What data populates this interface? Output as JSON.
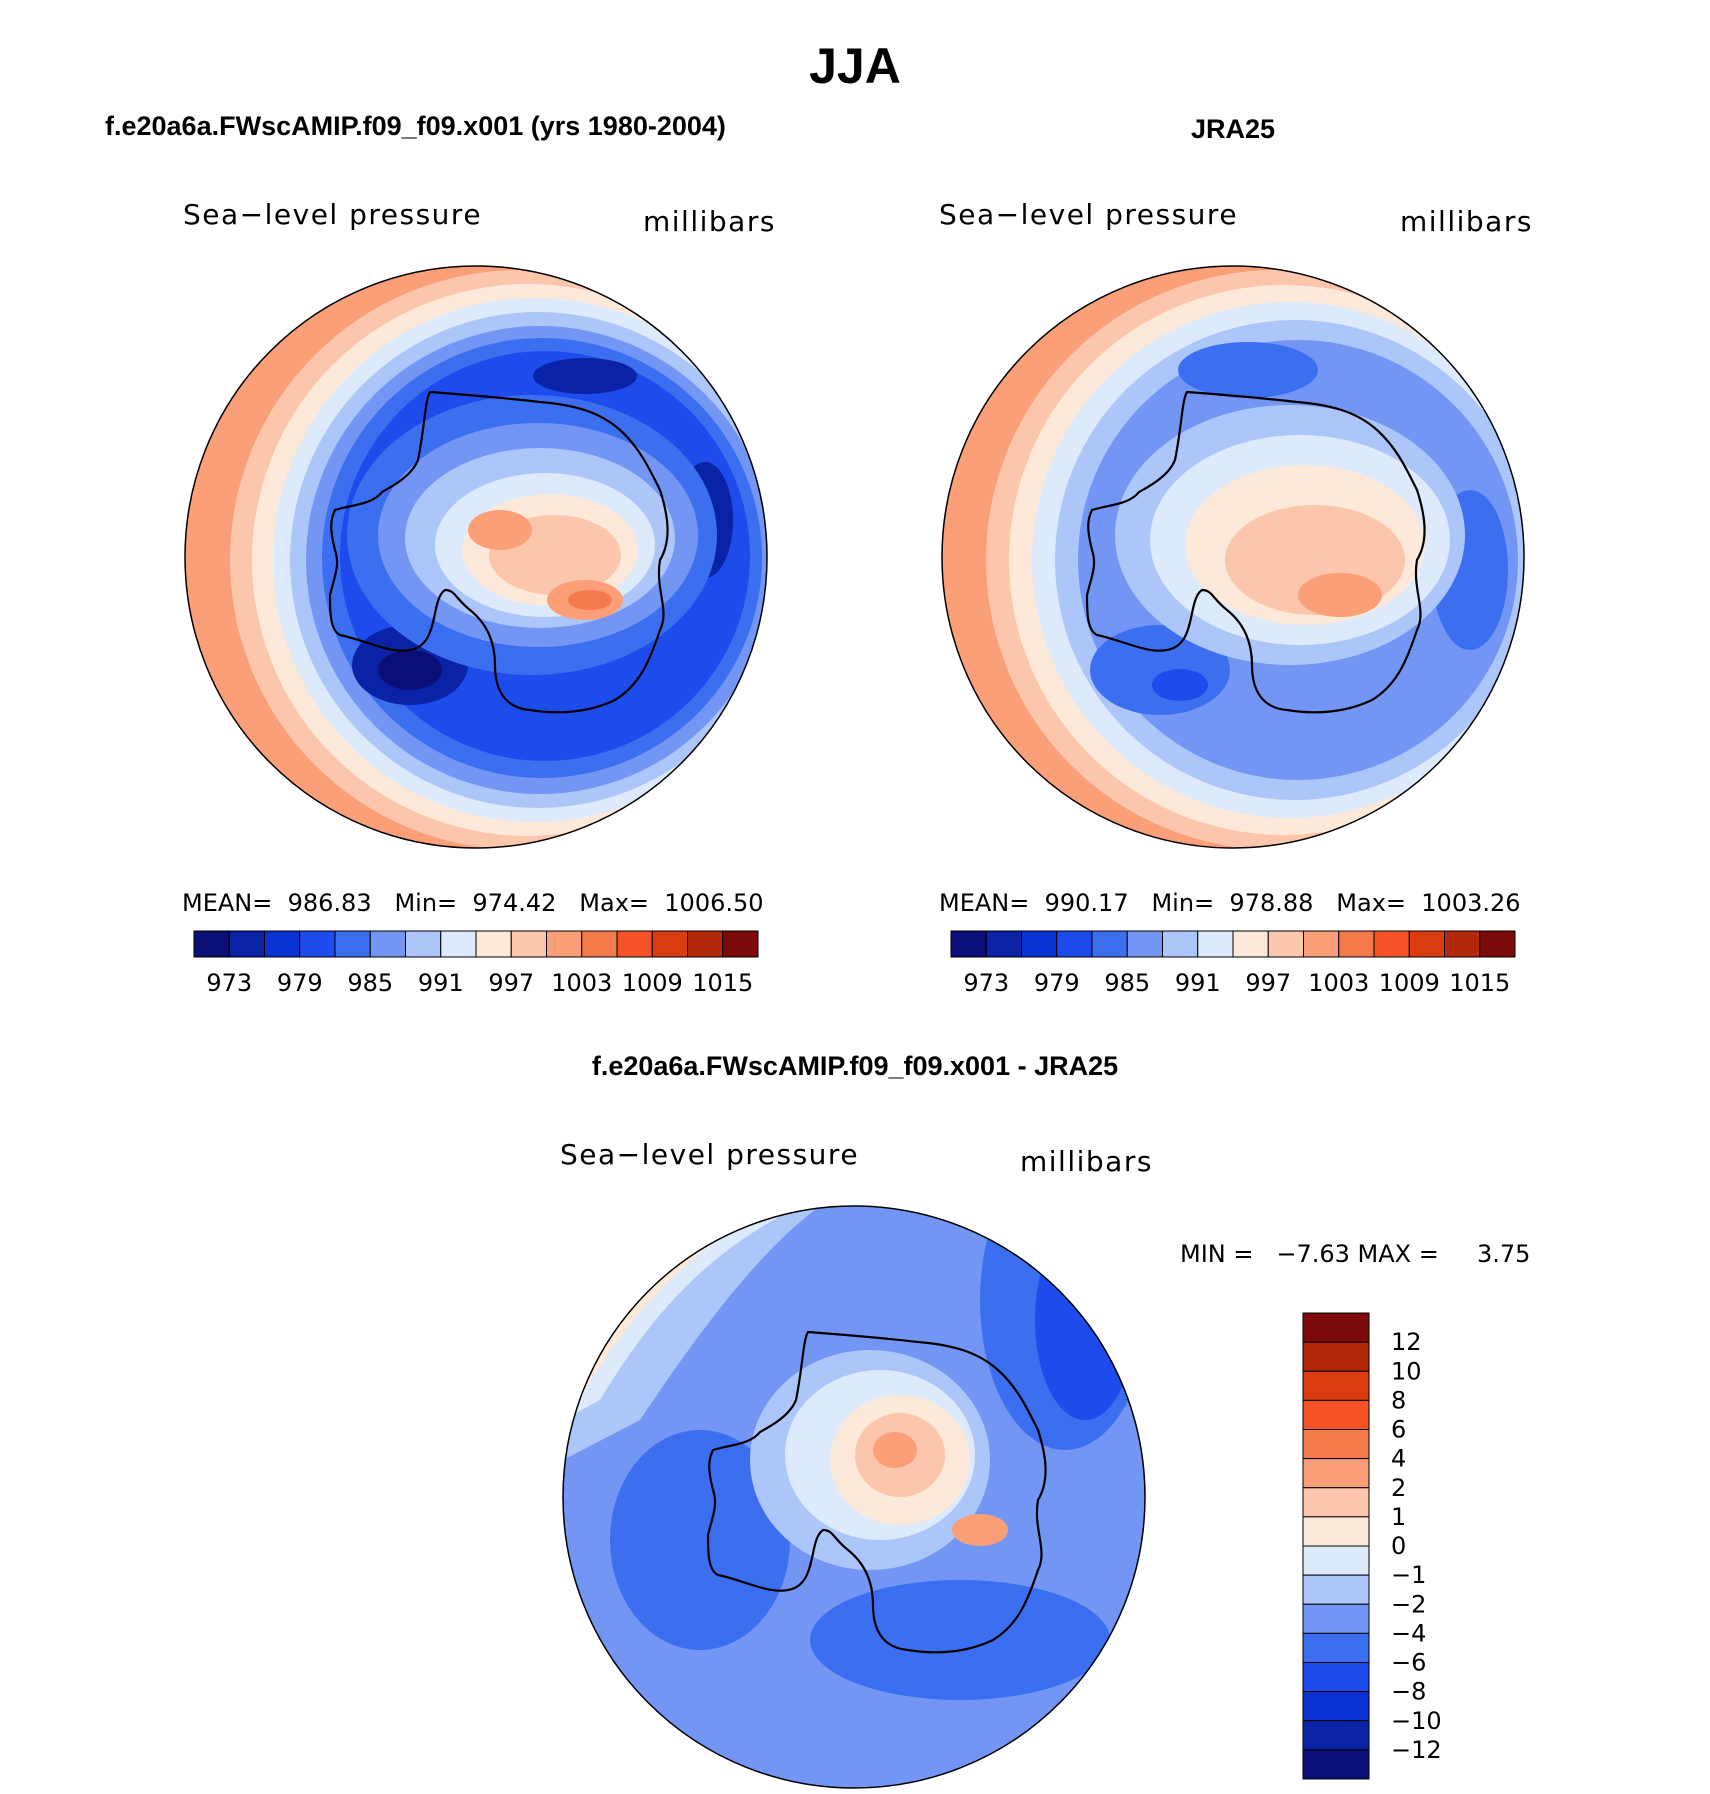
{
  "figure": {
    "season": "JJA",
    "panel_label_unit": "millibars"
  },
  "panels": {
    "model": {
      "heading": "f.e20a6a.FWscAMIP.f09_f09.x001 (yrs 1980-2004)",
      "variable": "Sea−level pressure",
      "unit": "millibars",
      "stats": "MEAN=  986.83   Min=  974.42   Max=  1006.50"
    },
    "obs": {
      "heading": "JRA25",
      "variable": "Sea−level pressure",
      "unit": "millibars",
      "stats": "MEAN=  990.17   Min=  978.88   Max=  1003.26"
    },
    "diff": {
      "heading": "f.e20a6a.FWscAMIP.f09_f09.x001 - JRA25",
      "variable": "Sea−level pressure",
      "unit": "millibars",
      "stats": "MIN =   −7.63 MAX =     3.75"
    }
  },
  "chart_data": [
    {
      "type": "heatmap",
      "projection": "south-polar-stereographic",
      "title": "f.e20a6a.FWscAMIP.f09_f09.x001 (yrs 1980-2004)",
      "variable": "Sea-level pressure",
      "units": "millibars",
      "mean": 986.83,
      "min": 974.42,
      "max": 1006.5,
      "levels": [
        973,
        976,
        979,
        982,
        985,
        988,
        991,
        994,
        997,
        1000,
        1003,
        1006,
        1009,
        1012,
        1015
      ],
      "tick_labels": [
        "973",
        "979",
        "985",
        "991",
        "997",
        "1003",
        "1009",
        "1015"
      ],
      "colorbar_orientation": "horizontal"
    },
    {
      "type": "heatmap",
      "projection": "south-polar-stereographic",
      "title": "JRA25",
      "variable": "Sea-level pressure",
      "units": "millibars",
      "mean": 990.17,
      "min": 978.88,
      "max": 1003.26,
      "levels": [
        973,
        976,
        979,
        982,
        985,
        988,
        991,
        994,
        997,
        1000,
        1003,
        1006,
        1009,
        1012,
        1015
      ],
      "tick_labels": [
        "973",
        "979",
        "985",
        "991",
        "997",
        "1003",
        "1009",
        "1015"
      ],
      "colorbar_orientation": "horizontal"
    },
    {
      "type": "heatmap",
      "projection": "south-polar-stereographic",
      "title": "f.e20a6a.FWscAMIP.f09_f09.x001 - JRA25",
      "variable": "Sea-level pressure",
      "units": "millibars",
      "min": -7.63,
      "max": 3.75,
      "levels": [
        -12,
        -10,
        -8,
        -6,
        -4,
        -2,
        -1,
        0,
        1,
        2,
        4,
        6,
        8,
        10,
        12
      ],
      "tick_labels": [
        "12",
        "10",
        "8",
        "6",
        "4",
        "2",
        "1",
        "0",
        "−1",
        "−2",
        "−4",
        "−6",
        "−8",
        "−10",
        "−12"
      ],
      "colorbar_orientation": "vertical"
    }
  ],
  "palette": [
    "#0a0f78",
    "#0a23a6",
    "#0a32d2",
    "#1e4beb",
    "#3c6ef0",
    "#7396f5",
    "#adc6fa",
    "#dceafc",
    "#fde9d9",
    "#fcc6ac",
    "#fa9f78",
    "#f57a4b",
    "#f55325",
    "#dc3a0f",
    "#b4280a",
    "#7d0a0a"
  ]
}
